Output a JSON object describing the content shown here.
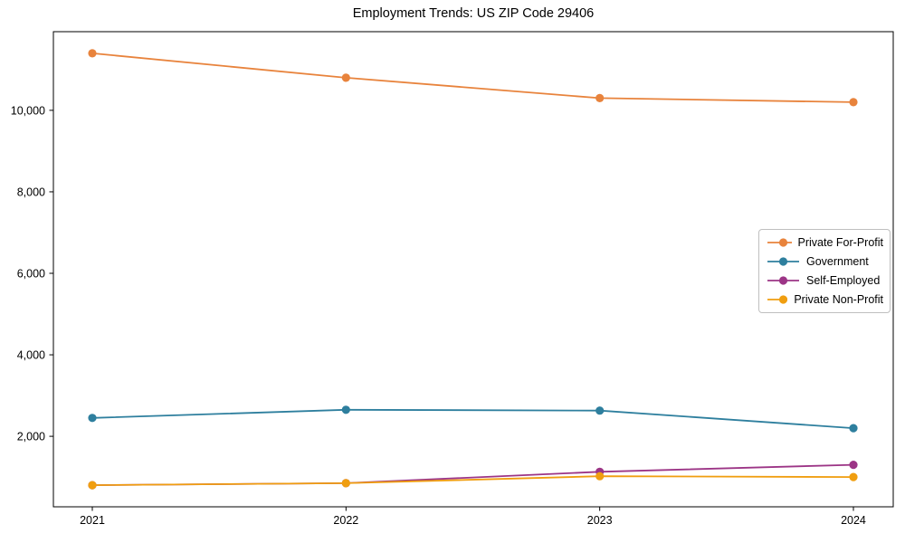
{
  "title": "Employment Trends: US ZIP Code 29406",
  "chart_data": {
    "type": "line",
    "title": "Employment Trends: US ZIP Code 29406",
    "x": [
      2021,
      2022,
      2023,
      2024
    ],
    "xtick_labels": [
      "2021",
      "2022",
      "2023",
      "2024"
    ],
    "yticks": [
      2000,
      4000,
      6000,
      8000,
      10000
    ],
    "ytick_labels": [
      "2,000",
      "4,000",
      "6,000",
      "8,000",
      "10,000"
    ],
    "ylim": [
      270,
      11930
    ],
    "xlabel": "",
    "ylabel": "",
    "grid": false,
    "legend_position": "center right",
    "marker": "circle",
    "series": [
      {
        "name": "Private For-Profit",
        "color": "#e8833c",
        "values": [
          11400,
          10800,
          10300,
          10200
        ]
      },
      {
        "name": "Government",
        "color": "#2e7f9e",
        "values": [
          2450,
          2650,
          2630,
          2200
        ]
      },
      {
        "name": "Self-Employed",
        "color": "#9c3586",
        "values": [
          800,
          850,
          1130,
          1300
        ]
      },
      {
        "name": "Private Non-Profit",
        "color": "#f09e10",
        "values": [
          800,
          850,
          1020,
          1000
        ]
      }
    ]
  }
}
